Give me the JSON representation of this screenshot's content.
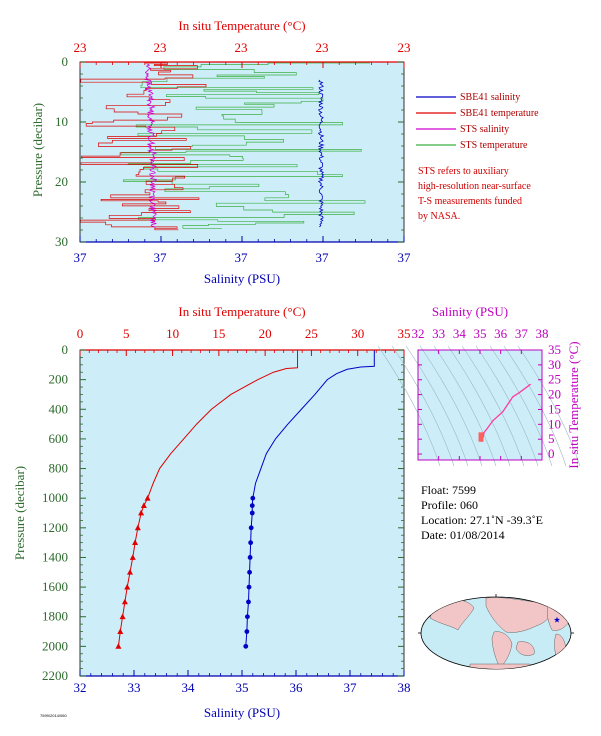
{
  "colors": {
    "temperature": "#e00000",
    "salinity": "#0000c8",
    "sts_salinity": "#d000d0",
    "sts_temperature": "#3cb043",
    "pressure_axis": "#2e6b2e",
    "plot_background": "#cdeef8",
    "ts_axis": "#c000c0"
  },
  "chart_data": [
    {
      "type": "line",
      "panel": "near-surface",
      "xlabel": "Salinity (PSU)",
      "x2label": "In situ Temperature (°C)",
      "ylabel": "Pressure (decibar)",
      "x_ticks": [
        "37",
        "37",
        "37",
        "37",
        "37"
      ],
      "x2_ticks": [
        "23",
        "23",
        "23",
        "23",
        "23"
      ],
      "y_ticks": [
        "0",
        "10",
        "20",
        "30"
      ],
      "ylim": [
        30,
        0
      ],
      "legend": [
        {
          "name": "SBE41 salinity",
          "color": "#0000c8"
        },
        {
          "name": "SBE41 temperature",
          "color": "#e00000"
        },
        {
          "name": "STS salinity",
          "color": "#d000d0"
        },
        {
          "name": "STS temperature",
          "color": "#3cb043"
        }
      ],
      "note": [
        "STS refers to auxiliary",
        "high-resolution near-surface",
        "T-S measurements funded",
        "by NASA."
      ]
    },
    {
      "type": "line",
      "panel": "profile",
      "xlabel": "Salinity (PSU)",
      "x2label": "In situ Temperature (°C)",
      "ylabel": "Pressure (decibar)",
      "x_ticks": [
        "32",
        "33",
        "34",
        "35",
        "36",
        "37",
        "38"
      ],
      "x2_ticks": [
        "0",
        "5",
        "10",
        "15",
        "20",
        "25",
        "30",
        "35"
      ],
      "y_ticks": [
        "0",
        "200",
        "400",
        "600",
        "800",
        "1000",
        "1200",
        "1400",
        "1600",
        "1800",
        "2000",
        "2200"
      ],
      "xlim": [
        32,
        38
      ],
      "x2lim": [
        0,
        35
      ],
      "ylim": [
        2200,
        0
      ],
      "series": [
        {
          "name": "temperature",
          "pressure": [
            0,
            120,
            125,
            150,
            200,
            300,
            400,
            500,
            600,
            700,
            800,
            900,
            1000
          ],
          "values": [
            23.5,
            23.5,
            22.3,
            20.9,
            19.2,
            16.3,
            14.2,
            12.6,
            11.2,
            9.8,
            8.6,
            7.9,
            7.3
          ]
        },
        {
          "name": "salinity",
          "pressure": [
            0,
            110,
            115,
            130,
            160,
            200,
            300,
            400,
            500,
            600,
            700,
            800,
            900,
            1000
          ],
          "values": [
            37.45,
            37.45,
            37.2,
            36.95,
            36.75,
            36.58,
            36.35,
            36.1,
            35.85,
            35.62,
            35.45,
            35.35,
            35.25,
            35.2
          ]
        },
        {
          "name": "temperature (bottle)",
          "pressure": [
            1000,
            1050,
            1100,
            1200,
            1300,
            1400,
            1500,
            1600,
            1700,
            1800,
            1900,
            2000
          ],
          "values": [
            7.3,
            6.9,
            6.6,
            6.25,
            5.95,
            5.7,
            5.4,
            5.1,
            4.85,
            4.6,
            4.35,
            4.15
          ]
        },
        {
          "name": "salinity (bottle)",
          "pressure": [
            1000,
            1050,
            1100,
            1200,
            1300,
            1400,
            1500,
            1600,
            1700,
            1800,
            1900,
            2000
          ],
          "values": [
            35.2,
            35.19,
            35.19,
            35.17,
            35.16,
            35.15,
            35.14,
            35.13,
            35.12,
            35.1,
            35.09,
            35.07
          ]
        }
      ]
    },
    {
      "type": "line",
      "panel": "T-S diagram",
      "xlabel": "Salinity (PSU)",
      "ylabel": "In situ Temperature (°C)",
      "x_ticks": [
        "32",
        "33",
        "34",
        "35",
        "36",
        "37",
        "38"
      ],
      "y_ticks": [
        "0",
        "5",
        "10",
        "15",
        "20",
        "25",
        "30",
        "35"
      ],
      "xlim": [
        32,
        38
      ],
      "ylim": [
        -2,
        35
      ],
      "series": [
        {
          "name": "profile",
          "salinity": [
            37.45,
            36.95,
            36.58,
            36.1,
            35.62,
            35.35,
            35.2,
            35.15,
            35.1,
            35.07
          ],
          "temperature": [
            23.5,
            20.9,
            19.2,
            14.2,
            11.2,
            8.6,
            7.3,
            5.7,
            4.6,
            4.15
          ]
        }
      ]
    }
  ],
  "info": {
    "float": "Float:  7599",
    "profile": "Profile:  060",
    "location": "Location:  27.1˚N  -39.3˚E",
    "date": "Date:  01/08/2014"
  },
  "map": {
    "marker": "float-location-star"
  },
  "footer": "7599/2014/060"
}
